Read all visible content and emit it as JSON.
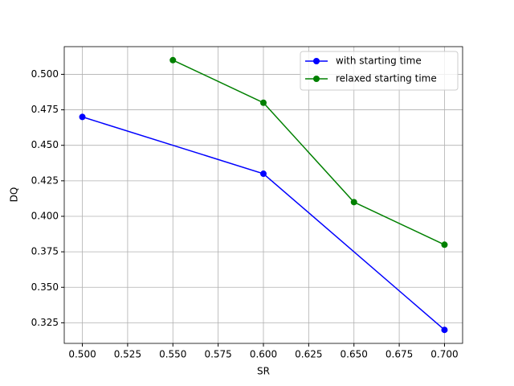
{
  "chart_data": {
    "type": "line",
    "x_label": "SR",
    "y_label": "DQ",
    "series": [
      {
        "name": "with starting time",
        "color": "#0000ff",
        "x": [
          0.5,
          0.6,
          0.7
        ],
        "values": [
          0.47,
          0.43,
          0.32
        ]
      },
      {
        "name": "relaxed starting time",
        "color": "#008000",
        "x": [
          0.55,
          0.6,
          0.65,
          0.7
        ],
        "values": [
          0.51,
          0.48,
          0.41,
          0.38
        ]
      }
    ],
    "xlim": [
      0.49,
      0.71
    ],
    "xticks": [
      {
        "value": 0.5,
        "label": "0.500"
      },
      {
        "value": 0.525,
        "label": "0.525"
      },
      {
        "value": 0.55,
        "label": "0.550"
      },
      {
        "value": 0.575,
        "label": "0.575"
      },
      {
        "value": 0.6,
        "label": "0.600"
      },
      {
        "value": 0.625,
        "label": "0.625"
      },
      {
        "value": 0.65,
        "label": "0.650"
      },
      {
        "value": 0.675,
        "label": "0.675"
      },
      {
        "value": 0.7,
        "label": "0.700"
      }
    ],
    "ylim": [
      0.3105,
      0.5195
    ],
    "yticks": [
      {
        "value": 0.325,
        "label": "0.325"
      },
      {
        "value": 0.35,
        "label": "0.350"
      },
      {
        "value": 0.375,
        "label": "0.375"
      },
      {
        "value": 0.4,
        "label": "0.400"
      },
      {
        "value": 0.425,
        "label": "0.425"
      },
      {
        "value": 0.45,
        "label": "0.450"
      },
      {
        "value": 0.475,
        "label": "0.475"
      },
      {
        "value": 0.5,
        "label": "0.500"
      }
    ],
    "grid": true,
    "legend": "upper right"
  }
}
